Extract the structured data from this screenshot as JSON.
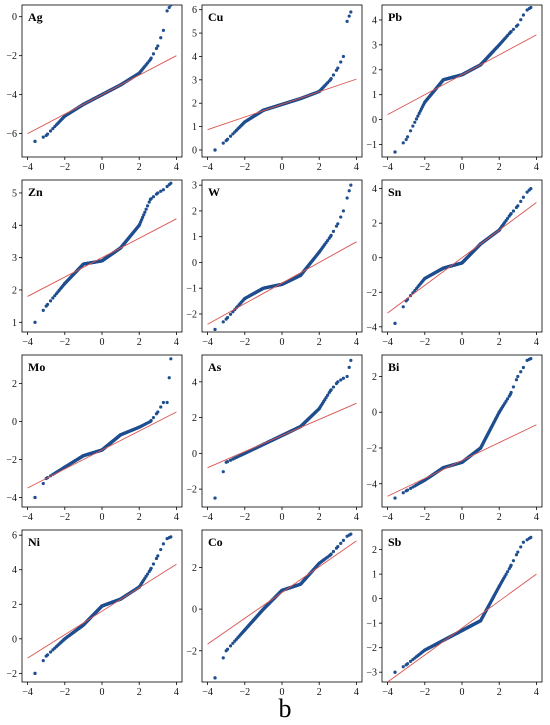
{
  "figure_label": "b",
  "colors": {
    "points": "#1f4e8f",
    "reference_line": "#d9534f",
    "axes": "#000000"
  },
  "chart_data": [
    {
      "type": "scatter",
      "title": "Ag",
      "x_ticks": [
        -4,
        -2,
        0,
        2,
        4
      ],
      "y_ticks": [
        -6,
        -4,
        -2,
        0
      ],
      "xlim": [
        -4.3,
        4.3
      ],
      "ylim": [
        -7.2,
        0.6
      ],
      "line": {
        "slope": 0.5,
        "intercept": -4.0
      },
      "quantiles": [
        [
          -3.6,
          -6.4
        ],
        [
          -3.0,
          -6.1
        ],
        [
          -2.0,
          -5.1
        ],
        [
          -1.0,
          -4.5
        ],
        [
          0.0,
          -4.0
        ],
        [
          1.0,
          -3.5
        ],
        [
          2.0,
          -2.9
        ],
        [
          2.6,
          -2.2
        ],
        [
          3.0,
          -1.5
        ],
        [
          3.3,
          -0.7
        ],
        [
          3.5,
          0.3
        ],
        [
          3.7,
          0.6
        ]
      ]
    },
    {
      "type": "scatter",
      "title": "Cu",
      "x_ticks": [
        -4,
        -2,
        0,
        2,
        4
      ],
      "y_ticks": [
        0,
        1,
        2,
        3,
        4,
        5,
        6
      ],
      "xlim": [
        -4.3,
        4.3
      ],
      "ylim": [
        -0.3,
        6.2
      ],
      "line": {
        "slope": 0.27,
        "intercept": 1.95
      },
      "quantiles": [
        [
          -3.6,
          0.0
        ],
        [
          -3.0,
          0.4
        ],
        [
          -2.0,
          1.2
        ],
        [
          -1.0,
          1.7
        ],
        [
          0.0,
          1.95
        ],
        [
          1.0,
          2.2
        ],
        [
          2.0,
          2.5
        ],
        [
          2.6,
          3.0
        ],
        [
          3.0,
          3.5
        ],
        [
          3.3,
          4.0
        ],
        [
          3.5,
          5.5
        ],
        [
          3.7,
          5.9
        ]
      ]
    },
    {
      "type": "scatter",
      "title": "Pb",
      "x_ticks": [
        -4,
        -2,
        0,
        2,
        4
      ],
      "y_ticks": [
        -1,
        0,
        1,
        2,
        3,
        4
      ],
      "xlim": [
        -4.3,
        4.3
      ],
      "ylim": [
        -1.5,
        4.6
      ],
      "line": {
        "slope": 0.4,
        "intercept": 1.8
      },
      "quantiles": [
        [
          -3.6,
          -1.3
        ],
        [
          -3.0,
          -0.8
        ],
        [
          -2.0,
          0.7
        ],
        [
          -1.0,
          1.6
        ],
        [
          0.0,
          1.8
        ],
        [
          1.0,
          2.2
        ],
        [
          2.0,
          3.0
        ],
        [
          2.6,
          3.5
        ],
        [
          3.0,
          3.8
        ],
        [
          3.3,
          4.2
        ],
        [
          3.5,
          4.4
        ],
        [
          3.7,
          4.5
        ]
      ]
    },
    {
      "type": "scatter",
      "title": "Zn",
      "x_ticks": [
        -4,
        -2,
        0,
        2,
        4
      ],
      "y_ticks": [
        1,
        2,
        3,
        4,
        5
      ],
      "xlim": [
        -4.3,
        4.3
      ],
      "ylim": [
        0.7,
        5.4
      ],
      "line": {
        "slope": 0.3,
        "intercept": 3.0
      },
      "quantiles": [
        [
          -3.6,
          1.0
        ],
        [
          -3.0,
          1.5
        ],
        [
          -2.0,
          2.2
        ],
        [
          -1.0,
          2.8
        ],
        [
          0.0,
          2.9
        ],
        [
          1.0,
          3.3
        ],
        [
          2.0,
          4.0
        ],
        [
          2.6,
          4.8
        ],
        [
          3.0,
          5.0
        ],
        [
          3.3,
          5.1
        ],
        [
          3.5,
          5.2
        ],
        [
          3.7,
          5.3
        ]
      ]
    },
    {
      "type": "scatter",
      "title": "W",
      "x_ticks": [
        -4,
        -2,
        0,
        2,
        4
      ],
      "y_ticks": [
        -2,
        -1,
        0,
        1,
        2,
        3
      ],
      "xlim": [
        -4.3,
        4.3
      ],
      "ylim": [
        -2.7,
        3.2
      ],
      "line": {
        "slope": 0.4,
        "intercept": -0.8
      },
      "quantiles": [
        [
          -3.6,
          -2.6
        ],
        [
          -3.0,
          -2.2
        ],
        [
          -2.0,
          -1.4
        ],
        [
          -1.0,
          -1.0
        ],
        [
          0.0,
          -0.85
        ],
        [
          1.0,
          -0.5
        ],
        [
          2.0,
          0.4
        ],
        [
          2.6,
          1.0
        ],
        [
          3.0,
          1.5
        ],
        [
          3.3,
          2.0
        ],
        [
          3.5,
          2.5
        ],
        [
          3.7,
          3.0
        ]
      ]
    },
    {
      "type": "scatter",
      "title": "Sn",
      "x_ticks": [
        -4,
        -2,
        0,
        2,
        4
      ],
      "y_ticks": [
        -4,
        -2,
        0,
        2,
        4
      ],
      "xlim": [
        -4.3,
        4.3
      ],
      "ylim": [
        -4.3,
        4.5
      ],
      "line": {
        "slope": 0.8,
        "intercept": 0.0
      },
      "quantiles": [
        [
          -3.6,
          -3.8
        ],
        [
          -3.0,
          -2.5
        ],
        [
          -2.0,
          -1.2
        ],
        [
          -1.0,
          -0.6
        ],
        [
          0.0,
          -0.3
        ],
        [
          1.0,
          0.8
        ],
        [
          2.0,
          1.6
        ],
        [
          2.6,
          2.5
        ],
        [
          3.0,
          3.0
        ],
        [
          3.3,
          3.5
        ],
        [
          3.5,
          3.8
        ],
        [
          3.7,
          4.0
        ]
      ]
    },
    {
      "type": "scatter",
      "title": "Mo",
      "x_ticks": [
        -4,
        -2,
        0,
        2,
        4
      ],
      "y_ticks": [
        -4,
        -2,
        0,
        2
      ],
      "xlim": [
        -4.3,
        4.3
      ],
      "ylim": [
        -4.5,
        3.5
      ],
      "line": {
        "slope": 0.5,
        "intercept": -1.5
      },
      "quantiles": [
        [
          -3.6,
          -4.0
        ],
        [
          -3.0,
          -3.0
        ],
        [
          -2.0,
          -2.4
        ],
        [
          -1.0,
          -1.8
        ],
        [
          0.0,
          -1.5
        ],
        [
          1.0,
          -0.7
        ],
        [
          2.0,
          -0.3
        ],
        [
          2.6,
          0.0
        ],
        [
          3.0,
          0.5
        ],
        [
          3.3,
          1.0
        ],
        [
          3.5,
          1.0
        ],
        [
          3.7,
          3.3
        ]
      ]
    },
    {
      "type": "scatter",
      "title": "As",
      "x_ticks": [
        -4,
        -2,
        0,
        2,
        4
      ],
      "y_ticks": [
        -2,
        0,
        2,
        4
      ],
      "xlim": [
        -4.3,
        4.3
      ],
      "ylim": [
        -3.0,
        5.5
      ],
      "line": {
        "slope": 0.45,
        "intercept": 1.0
      },
      "quantiles": [
        [
          -3.6,
          -2.5
        ],
        [
          -3.0,
          -0.5
        ],
        [
          -2.0,
          0.0
        ],
        [
          -1.0,
          0.5
        ],
        [
          0.0,
          1.0
        ],
        [
          1.0,
          1.5
        ],
        [
          2.0,
          2.5
        ],
        [
          2.6,
          3.5
        ],
        [
          3.0,
          4.0
        ],
        [
          3.3,
          4.2
        ],
        [
          3.5,
          4.3
        ],
        [
          3.7,
          5.2
        ]
      ]
    },
    {
      "type": "scatter",
      "title": "Bi",
      "x_ticks": [
        -4,
        -2,
        0,
        2,
        4
      ],
      "y_ticks": [
        -4,
        -2,
        0,
        2
      ],
      "xlim": [
        -4.3,
        4.3
      ],
      "ylim": [
        -5.3,
        3.2
      ],
      "line": {
        "slope": 0.5,
        "intercept": -2.7
      },
      "quantiles": [
        [
          -3.6,
          -4.8
        ],
        [
          -3.0,
          -4.4
        ],
        [
          -2.0,
          -3.8
        ],
        [
          -1.0,
          -3.1
        ],
        [
          0.0,
          -2.8
        ],
        [
          1.0,
          -2.0
        ],
        [
          2.0,
          0.0
        ],
        [
          2.6,
          1.0
        ],
        [
          3.0,
          2.0
        ],
        [
          3.3,
          2.5
        ],
        [
          3.5,
          2.9
        ],
        [
          3.7,
          3.0
        ]
      ]
    },
    {
      "type": "scatter",
      "title": "Ni",
      "x_ticks": [
        -4,
        -2,
        0,
        2,
        4
      ],
      "y_ticks": [
        -2,
        0,
        2,
        4,
        6
      ],
      "xlim": [
        -4.3,
        4.3
      ],
      "ylim": [
        -2.5,
        6.3
      ],
      "line": {
        "slope": 0.68,
        "intercept": 1.6
      },
      "quantiles": [
        [
          -3.6,
          -2.0
        ],
        [
          -3.0,
          -1.0
        ],
        [
          -2.0,
          0.0
        ],
        [
          -1.0,
          0.8
        ],
        [
          0.0,
          1.9
        ],
        [
          1.0,
          2.3
        ],
        [
          2.0,
          3.0
        ],
        [
          2.6,
          4.0
        ],
        [
          3.0,
          4.8
        ],
        [
          3.3,
          5.5
        ],
        [
          3.5,
          5.8
        ],
        [
          3.7,
          5.9
        ]
      ]
    },
    {
      "type": "scatter",
      "title": "Co",
      "x_ticks": [
        -4,
        -2,
        0,
        2,
        4
      ],
      "y_ticks": [
        -2,
        0,
        2
      ],
      "xlim": [
        -4.3,
        4.3
      ],
      "ylim": [
        -3.5,
        3.8
      ],
      "line": {
        "slope": 0.62,
        "intercept": 0.8
      },
      "quantiles": [
        [
          -3.6,
          -3.3
        ],
        [
          -3.0,
          -2.0
        ],
        [
          -2.0,
          -1.0
        ],
        [
          -1.0,
          0.0
        ],
        [
          0.0,
          0.9
        ],
        [
          1.0,
          1.2
        ],
        [
          2.0,
          2.2
        ],
        [
          2.6,
          2.6
        ],
        [
          3.0,
          3.0
        ],
        [
          3.3,
          3.3
        ],
        [
          3.5,
          3.5
        ],
        [
          3.7,
          3.6
        ]
      ]
    },
    {
      "type": "scatter",
      "title": "Sb",
      "x_ticks": [
        -4,
        -2,
        0,
        2,
        4
      ],
      "y_ticks": [
        -3,
        -2,
        -1,
        0,
        1,
        2
      ],
      "xlim": [
        -4.3,
        4.3
      ],
      "ylim": [
        -3.4,
        2.8
      ],
      "line": {
        "slope": 0.55,
        "intercept": -1.2
      },
      "quantiles": [
        [
          -3.6,
          -3.0
        ],
        [
          -3.0,
          -2.7
        ],
        [
          -2.0,
          -2.1
        ],
        [
          -1.0,
          -1.7
        ],
        [
          0.0,
          -1.3
        ],
        [
          1.0,
          -0.9
        ],
        [
          2.0,
          0.5
        ],
        [
          2.6,
          1.3
        ],
        [
          3.0,
          1.9
        ],
        [
          3.3,
          2.3
        ],
        [
          3.5,
          2.4
        ],
        [
          3.7,
          2.5
        ]
      ]
    }
  ]
}
